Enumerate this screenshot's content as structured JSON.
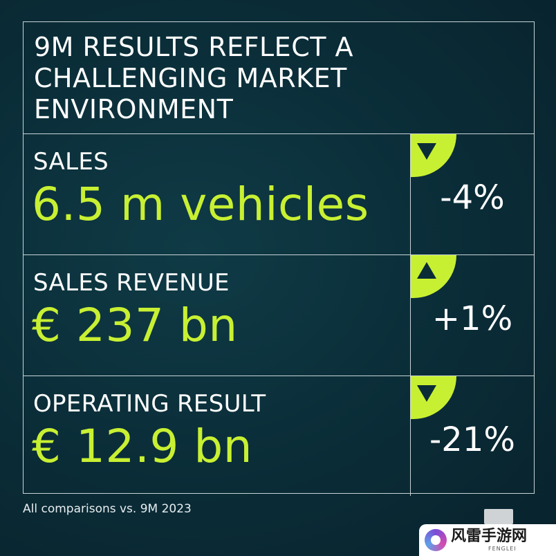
{
  "title": "9M RESULTS REFLECT A\nCHALLENGING MARKET\nENVIRONMENT",
  "rows": [
    {
      "label": "SALES",
      "value": "6.5 m vehicles",
      "change": "-4%",
      "direction": "down"
    },
    {
      "label": "SALES REVENUE",
      "value": "€ 237 bn",
      "change": "+1%",
      "direction": "up"
    },
    {
      "label": "OPERATING RESULT",
      "value": "€ 12.9 bn",
      "change": "-21%",
      "direction": "down"
    }
  ],
  "footnote": "All comparisons vs. 9M 2023",
  "watermark": {
    "text": "风雷手游网",
    "sub": "FENGLEI"
  },
  "colors": {
    "background": "#0a2c37",
    "accent": "#c8f032",
    "text": "#ffffff",
    "border": "#c9d4d6"
  }
}
